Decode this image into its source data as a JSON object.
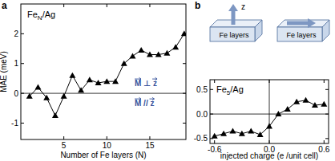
{
  "chart_data": [
    {
      "type": "line",
      "panel": "a",
      "title": "FeN/Ag",
      "x_label": "Number of Fe layers (N)",
      "y_label": "MAE (meV)",
      "x": [
        1,
        2,
        3,
        4,
        5,
        6,
        7,
        8,
        9,
        10,
        11,
        12,
        13,
        14,
        15,
        16,
        17,
        18,
        19
      ],
      "series": [
        {
          "name": "FeN/Ag",
          "color": "#000000",
          "marker": "triangle",
          "values": [
            -0.1,
            0.2,
            -0.15,
            -0.75,
            -0.1,
            0.6,
            0.1,
            0.45,
            0.35,
            0.4,
            0.4,
            1.0,
            1.25,
            1.45,
            1.3,
            1.3,
            1.35,
            1.55,
            2.0
          ]
        }
      ],
      "xlim": [
        0,
        19.2
      ],
      "xticks": [
        5,
        10,
        15
      ],
      "ylim": [
        -1.55,
        3.0
      ],
      "yticks": [
        -1,
        0,
        1,
        2
      ],
      "annotations": [
        {
          "text": "M ⊥ z"
        },
        {
          "text": "M // z"
        }
      ]
    },
    {
      "type": "line",
      "panel": "b",
      "title": "Fe5/Ag",
      "x_label": "injected charge (e /unit cell)",
      "x": [
        -0.6,
        -0.5,
        -0.4,
        -0.3,
        -0.2,
        -0.1,
        0.0,
        0.1,
        0.2,
        0.3,
        0.4,
        0.5,
        0.6
      ],
      "series": [
        {
          "name": "Fe5/Ag",
          "color": "#000000",
          "marker": "triangle",
          "values": [
            -0.45,
            -0.4,
            -0.35,
            -0.4,
            -0.35,
            -0.42,
            -0.25,
            0.0,
            0.1,
            0.25,
            0.28,
            0.18,
            0.2
          ]
        }
      ],
      "xlim": [
        -0.65,
        0.65
      ],
      "xticks": [
        -0.6,
        {
          "value": 0,
          "label": "0.0"
        },
        0.6
      ],
      "ylim": [
        -0.6,
        0.7
      ],
      "yticks": [
        -0.5,
        {
          "value": 0,
          "label": "0.0"
        },
        0.5
      ],
      "annotations": [
        {
          "text": "z"
        },
        {
          "text": "Fe layers"
        },
        {
          "text": "Fe layers"
        }
      ]
    }
  ]
}
